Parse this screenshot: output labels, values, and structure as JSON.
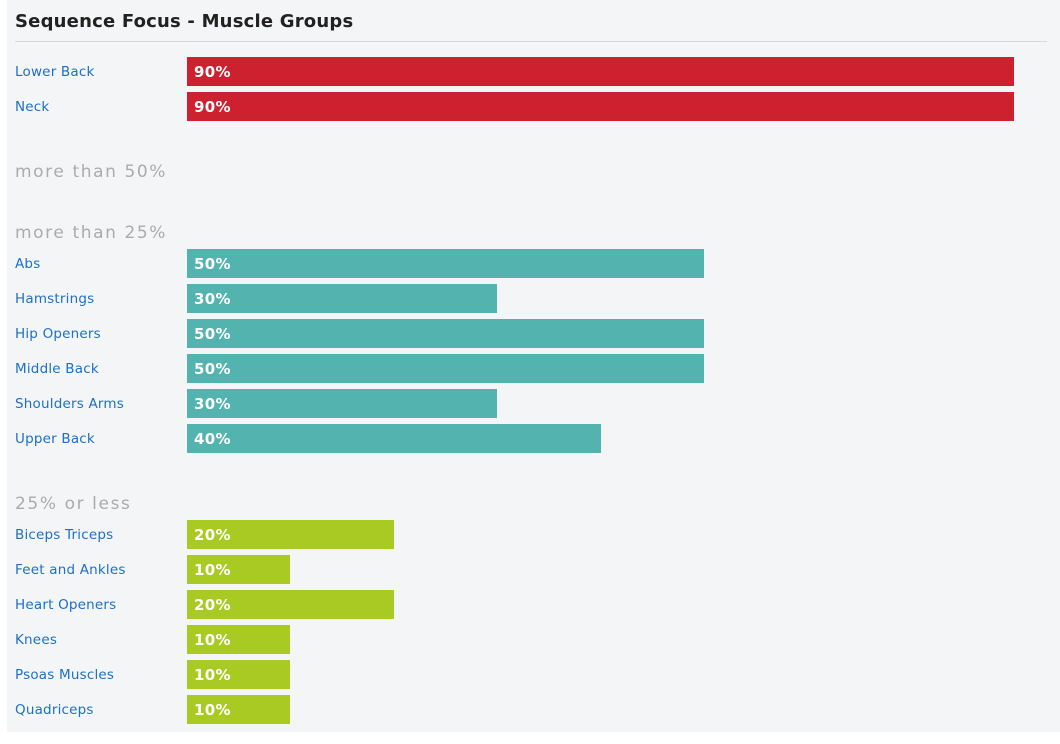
{
  "title": "Sequence Focus - Muscle Groups",
  "colors": {
    "panel_background": "#f4f5f7",
    "page_background": "#ffffff",
    "title_text": "#212121",
    "label_link_blue": "#1c70c8",
    "section_header_gray": "#ababab",
    "bar_value_text": "#ffffff",
    "bar_red": "#cd2130",
    "bar_teal": "#53b3af",
    "bar_green": "#a9ca22",
    "divider": "#d8d9db"
  },
  "chart_data": {
    "type": "bar",
    "orientation": "horizontal",
    "title": "Sequence Focus - Muscle Groups",
    "value_unit": "%",
    "xlim": [
      0,
      80
    ],
    "grid": false,
    "legend": false,
    "sections": [
      {
        "header": "",
        "bar_color": "#cd2130",
        "items": [
          {
            "label": "Lower Back",
            "value": 90,
            "value_label": "90%"
          },
          {
            "label": "Neck",
            "value": 90,
            "value_label": "90%"
          }
        ]
      },
      {
        "header": "more than 50%",
        "bar_color": "",
        "items": []
      },
      {
        "header": "more than 25%",
        "bar_color": "#53b3af",
        "items": [
          {
            "label": "Abs",
            "value": 50,
            "value_label": "50%"
          },
          {
            "label": "Hamstrings",
            "value": 30,
            "value_label": "30%"
          },
          {
            "label": "Hip Openers",
            "value": 50,
            "value_label": "50%"
          },
          {
            "label": "Middle Back",
            "value": 50,
            "value_label": "50%"
          },
          {
            "label": "Shoulders Arms",
            "value": 30,
            "value_label": "30%"
          },
          {
            "label": "Upper Back",
            "value": 40,
            "value_label": "40%"
          }
        ]
      },
      {
        "header": "25% or less",
        "bar_color": "#a9ca22",
        "items": [
          {
            "label": "Biceps Triceps",
            "value": 20,
            "value_label": "20%"
          },
          {
            "label": "Feet and Ankles",
            "value": 10,
            "value_label": "10%"
          },
          {
            "label": "Heart Openers",
            "value": 20,
            "value_label": "20%"
          },
          {
            "label": "Knees",
            "value": 10,
            "value_label": "10%"
          },
          {
            "label": "Psoas Muscles",
            "value": 10,
            "value_label": "10%"
          },
          {
            "label": "Quadriceps",
            "value": 10,
            "value_label": "10%"
          }
        ]
      }
    ]
  }
}
